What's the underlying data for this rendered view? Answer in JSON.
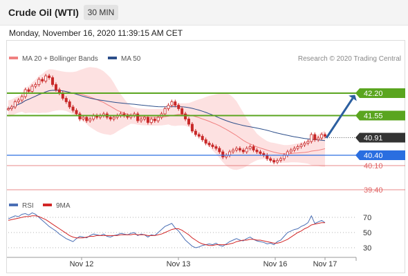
{
  "header": {
    "title": "Crude Oil (WTI)",
    "timeframe": "30 MIN"
  },
  "timestamp": "Monday, November 16, 2020 11:39:15 AM CET",
  "credit": "Research © 2020 Trading Central",
  "colors": {
    "ma20": "#f08080",
    "ma50": "#2c4e8a",
    "bollinger_fill": "#fcd9d9",
    "resistance": "#5aa51f",
    "support": "#2a6ee0",
    "target_red": "#e06060",
    "current_price_bg": "#333333",
    "arrow": "#2c5fa0",
    "candle_up": "#c82828",
    "candle_down": "#c82828",
    "rsi": "#4a6fb5",
    "rsi_ma": "#d22626"
  },
  "chart_data": [
    {
      "type": "candlestick",
      "legend": [
        {
          "name": "MA 20 + Bollinger Bands",
          "color": "#f08080"
        },
        {
          "name": "MA 50",
          "color": "#2c4e8a"
        }
      ],
      "x_ticks": [
        "Nov 12",
        "Nov 13",
        "Nov 16",
        "Nov 17"
      ],
      "ylim": [
        39.2,
        42.9
      ],
      "close": [
        41.75,
        41.8,
        41.95,
        42.0,
        42.1,
        42.3,
        42.25,
        42.4,
        42.45,
        42.6,
        42.55,
        42.7,
        42.65,
        42.45,
        42.3,
        42.2,
        42.05,
        41.95,
        41.8,
        41.7,
        41.6,
        41.45,
        41.5,
        41.4,
        41.45,
        41.55,
        41.5,
        41.55,
        41.6,
        41.5,
        41.45,
        41.5,
        41.55,
        41.6,
        41.55,
        41.5,
        41.55,
        41.6,
        41.4,
        41.45,
        41.5,
        41.35,
        41.45,
        41.4,
        41.5,
        41.6,
        41.75,
        41.85,
        41.95,
        41.85,
        41.75,
        41.6,
        41.45,
        41.3,
        41.1,
        41.0,
        40.95,
        40.85,
        40.75,
        40.7,
        40.65,
        40.6,
        40.5,
        40.35,
        40.4,
        40.5,
        40.55,
        40.6,
        40.55,
        40.5,
        40.6,
        40.65,
        40.55,
        40.5,
        40.45,
        40.4,
        40.3,
        40.25,
        40.2,
        40.25,
        40.3,
        40.4,
        40.5,
        40.55,
        40.6,
        40.65,
        40.7,
        40.75,
        40.8,
        41.0,
        40.85,
        40.9,
        41.0,
        40.95
      ],
      "levels": {
        "resistances": [
          42.2,
          41.55
        ],
        "current_price": 40.91,
        "pivot": 40.4,
        "supports": [
          40.1,
          39.4
        ]
      },
      "annotations": [
        "42.20",
        "41.55",
        "40.91",
        "40.40",
        "40.10",
        "39.40"
      ]
    },
    {
      "type": "line",
      "title": "RSI",
      "legend": [
        {
          "name": "RSI",
          "color": "#4a6fb5"
        },
        {
          "name": "9MA",
          "color": "#d22626"
        }
      ],
      "y_ticks": [
        70,
        50,
        30
      ],
      "ylim": [
        20,
        80
      ],
      "rsi": [
        68,
        70,
        72,
        71,
        74,
        75,
        73,
        76,
        74,
        70,
        66,
        62,
        58,
        55,
        52,
        48,
        45,
        42,
        40,
        38,
        42,
        45,
        44,
        43,
        46,
        48,
        47,
        46,
        48,
        45,
        44,
        46,
        47,
        49,
        48,
        47,
        49,
        50,
        46,
        48,
        47,
        44,
        47,
        46,
        50,
        54,
        58,
        60,
        62,
        56,
        52,
        46,
        40,
        36,
        32,
        30,
        31,
        33,
        34,
        35,
        34,
        36,
        33,
        32,
        35,
        38,
        40,
        42,
        40,
        39,
        42,
        44,
        41,
        39,
        38,
        37,
        35,
        36,
        34,
        38,
        40,
        45,
        50,
        52,
        54,
        55,
        58,
        60,
        63,
        72,
        62,
        64,
        66,
        63
      ],
      "rsi_ma": [
        66,
        67,
        68,
        69,
        70,
        71,
        71,
        72,
        72,
        71,
        69,
        67,
        64,
        61,
        58,
        55,
        52,
        49,
        46,
        44,
        43,
        43,
        43,
        44,
        45,
        45,
        46,
        46,
        46,
        46,
        46,
        46,
        46,
        47,
        47,
        47,
        47,
        48,
        47,
        47,
        47,
        46,
        46,
        46,
        47,
        48,
        50,
        52,
        54,
        55,
        55,
        53,
        50,
        47,
        43,
        40,
        37,
        35,
        34,
        33,
        33,
        34,
        34,
        34,
        34,
        35,
        36,
        38,
        39,
        40,
        40,
        41,
        41,
        40,
        40,
        39,
        38,
        37,
        36,
        36,
        37,
        39,
        41,
        44,
        47,
        50,
        52,
        55,
        57,
        60,
        61,
        62,
        63,
        63
      ]
    }
  ]
}
